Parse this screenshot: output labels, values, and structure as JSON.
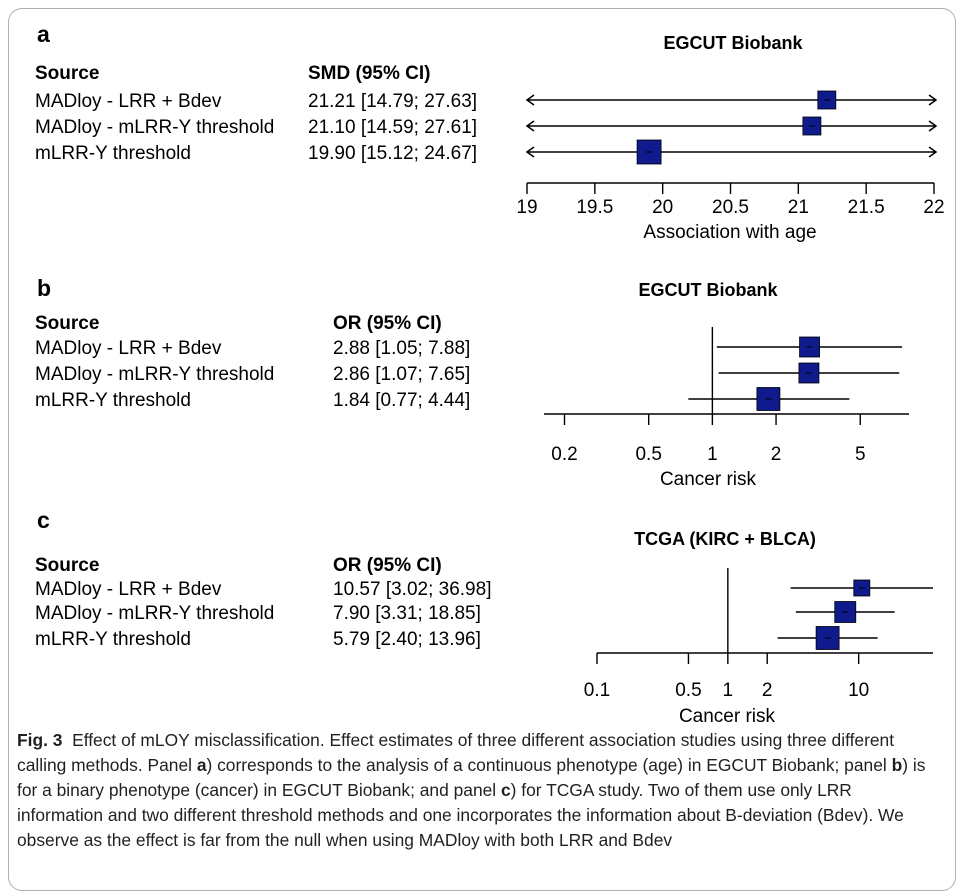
{
  "colors": {
    "marker": "#0f1a8c",
    "line": "#000000",
    "text": "#000000"
  },
  "chart_data": [
    {
      "panel": "a",
      "type": "forest",
      "title": "EGCUT Biobank",
      "column_headers": {
        "source": "Source",
        "estimate": "SMD (95% CI)"
      },
      "xlabel": "Association with age",
      "x_scale": "linear",
      "xlim": [
        19,
        22
      ],
      "ticks": [
        "19",
        "19.5",
        "20",
        "20.5",
        "21",
        "21.5",
        "22"
      ],
      "rows": [
        {
          "source": "MADloy - LRR + Bdev",
          "estimate_text": "21.21 [14.79; 27.63]",
          "estimate": 21.21,
          "lower": 14.79,
          "upper": 27.63,
          "weight": 0.9
        },
        {
          "source": "MADloy - mLRR-Y threshold",
          "estimate_text": "21.10 [14.59; 27.61]",
          "estimate": 21.1,
          "lower": 14.59,
          "upper": 27.61,
          "weight": 0.9
        },
        {
          "source": "mLRR-Y threshold",
          "estimate_text": "19.90 [15.12; 24.67]",
          "estimate": 19.9,
          "lower": 15.12,
          "upper": 24.67,
          "weight": 1.2
        }
      ]
    },
    {
      "panel": "b",
      "type": "forest",
      "title": "EGCUT Biobank",
      "column_headers": {
        "source": "Source",
        "estimate": "OR (95% CI)"
      },
      "xlabel": "Cancer risk",
      "x_scale": "log",
      "xlim": [
        0.16,
        8.5
      ],
      "null_line": 1,
      "ticks": [
        "0.2",
        "0.5",
        "1",
        "2",
        "5"
      ],
      "rows": [
        {
          "source": "MADloy - LRR + Bdev",
          "estimate_text": "2.88 [1.05; 7.88]",
          "estimate": 2.88,
          "lower": 1.05,
          "upper": 7.88,
          "weight": 1.0
        },
        {
          "source": "MADloy - mLRR-Y threshold",
          "estimate_text": "2.86 [1.07; 7.65]",
          "estimate": 2.86,
          "lower": 1.07,
          "upper": 7.65,
          "weight": 1.0
        },
        {
          "source": "mLRR-Y threshold",
          "estimate_text": "1.84 [0.77; 4.44]",
          "estimate": 1.84,
          "lower": 0.77,
          "upper": 4.44,
          "weight": 1.15
        }
      ]
    },
    {
      "panel": "c",
      "type": "forest",
      "title": "TCGA (KIRC + BLCA)",
      "column_headers": {
        "source": "Source",
        "estimate": "OR (95% CI)"
      },
      "xlabel": "Cancer risk",
      "x_scale": "log",
      "xlim": [
        0.1,
        37
      ],
      "null_line": 1,
      "ticks": [
        "0.1",
        "0.5",
        "1",
        "2",
        "10"
      ],
      "rows": [
        {
          "source": "MADloy - LRR + Bdev",
          "estimate_text": "10.57 [3.02; 36.98]",
          "estimate": 10.57,
          "lower": 3.02,
          "upper": 36.98,
          "weight": 0.8
        },
        {
          "source": "MADloy - mLRR-Y threshold",
          "estimate_text": "7.90 [3.31; 18.85]",
          "estimate": 7.9,
          "lower": 3.31,
          "upper": 18.85,
          "weight": 1.05
        },
        {
          "source": "mLRR-Y threshold",
          "estimate_text": "5.79 [2.40; 13.96]",
          "estimate": 5.79,
          "lower": 2.4,
          "upper": 13.96,
          "weight": 1.15
        }
      ]
    }
  ],
  "caption": {
    "label": "Fig. 3",
    "s1": "Effect of mLOY misclassification. Effect estimates of three different association studies using three different calling methods. Panel ",
    "pa": "a",
    "s2": ") corresponds to the analysis of a continuous phenotype (age) in EGCUT Biobank; panel ",
    "pb": "b",
    "s3": ") is for a binary phenotype (cancer) in EGCUT Biobank; and panel ",
    "pc": "c",
    "s4": ") for TCGA study. Two of them use only LRR information and two different threshold methods and one incorporates the information about B-deviation (Bdev). We observe as the effect is far from the null when using MADloy with both LRR and Bdev"
  }
}
